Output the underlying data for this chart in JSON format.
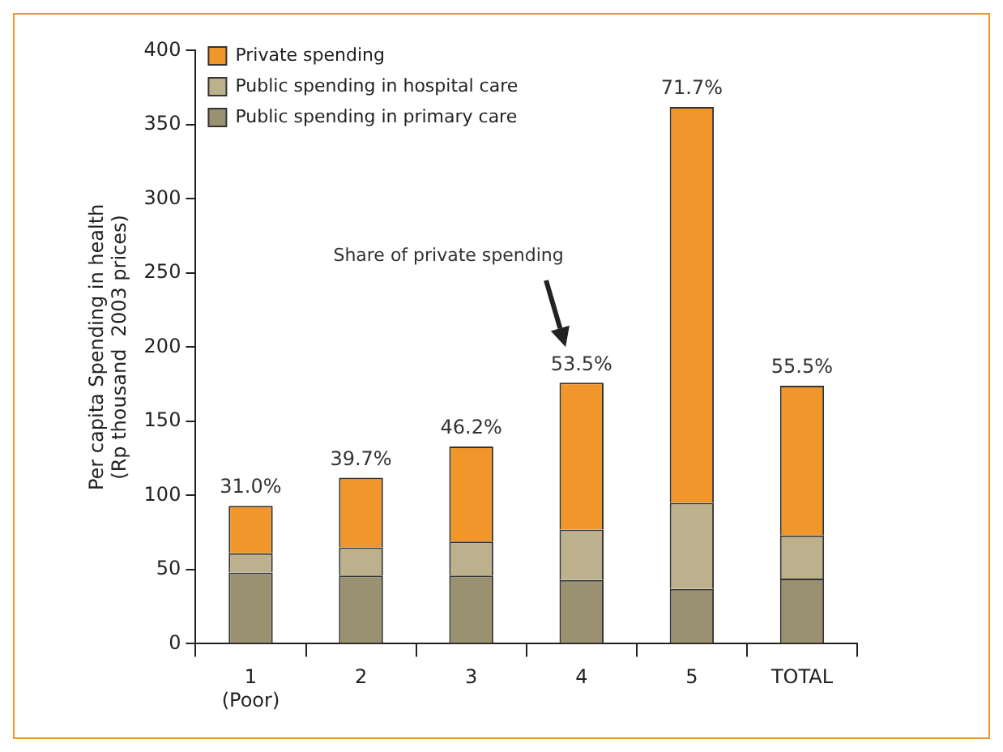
{
  "chart_data": {
    "type": "bar",
    "stacked": true,
    "ylabel": "Per capita Spending in health\n(Rp thousand  2003 prices)",
    "categories": [
      "1\n(Poor)",
      "2",
      "3",
      "4",
      "5",
      "TOTAL"
    ],
    "series": [
      {
        "name": "Public spending in primary care",
        "color": "#9a9170",
        "values": [
          48,
          46,
          46,
          43,
          37,
          44
        ]
      },
      {
        "name": "Public spending in hospital care",
        "color": "#bcb18c",
        "values": [
          13,
          19,
          23,
          34,
          58,
          29
        ]
      },
      {
        "name": "Private spending",
        "color": "#f0962a",
        "values": [
          32,
          47,
          64,
          99,
          267,
          101
        ]
      }
    ],
    "ylim": [
      0,
      400
    ],
    "yticks": [
      0,
      50,
      100,
      150,
      200,
      250,
      300,
      350,
      400
    ],
    "grid": false,
    "legend": "top left",
    "annotations": [
      {
        "text": "31.0%",
        "x": "1\n(Poor)",
        "y": 93
      },
      {
        "text": "39.7%",
        "x": "2",
        "y": 112
      },
      {
        "text": "46.2%",
        "x": "3",
        "y": 133
      },
      {
        "text": "53.5%",
        "x": "4",
        "y": 176
      },
      {
        "text": "71.7%",
        "x": "5",
        "y": 362
      },
      {
        "text": "55.5%",
        "x": "TOTAL",
        "y": 174
      },
      "Share of private spending"
    ]
  }
}
